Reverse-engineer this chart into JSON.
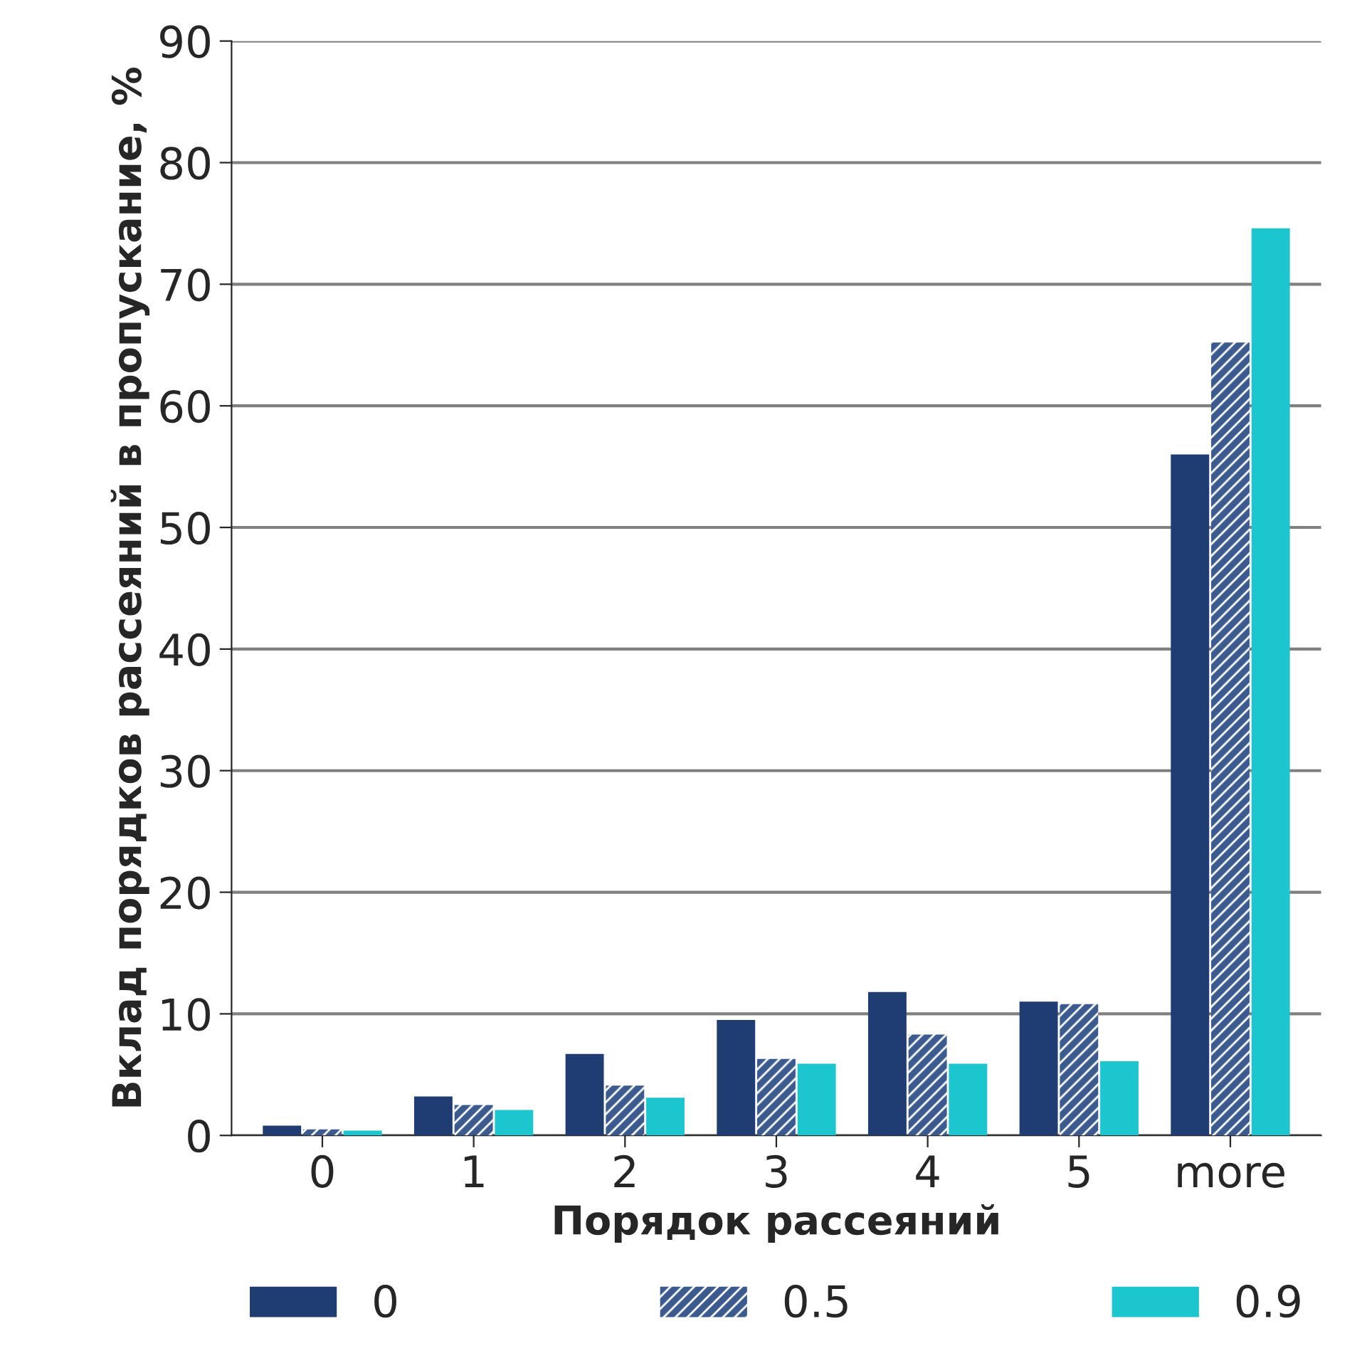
{
  "chart_data": {
    "type": "bar",
    "xlabel": "Порядок рассеяний",
    "ylabel": "Вклад порядков рассеяний в пропускание, %",
    "categories": [
      "0",
      "1",
      "2",
      "3",
      "4",
      "5",
      "more"
    ],
    "series": [
      {
        "name": "0",
        "color": "#1f3d73",
        "values": [
          0.8,
          3.2,
          6.7,
          9.5,
          11.8,
          11.0,
          56.0
        ]
      },
      {
        "name": "0.5",
        "color": "#3b5b8f",
        "values": [
          0.5,
          2.5,
          4.1,
          6.3,
          8.3,
          10.8,
          65.2
        ]
      },
      {
        "name": "0.9",
        "color": "#1cc6cf",
        "values": [
          0.4,
          2.1,
          3.1,
          5.9,
          5.9,
          6.1,
          74.6
        ]
      }
    ],
    "ylim": [
      0,
      90
    ],
    "yticks": [
      0,
      10,
      20,
      30,
      40,
      50,
      60,
      70,
      80,
      90
    ],
    "grid": "y",
    "legend": "bottom"
  }
}
